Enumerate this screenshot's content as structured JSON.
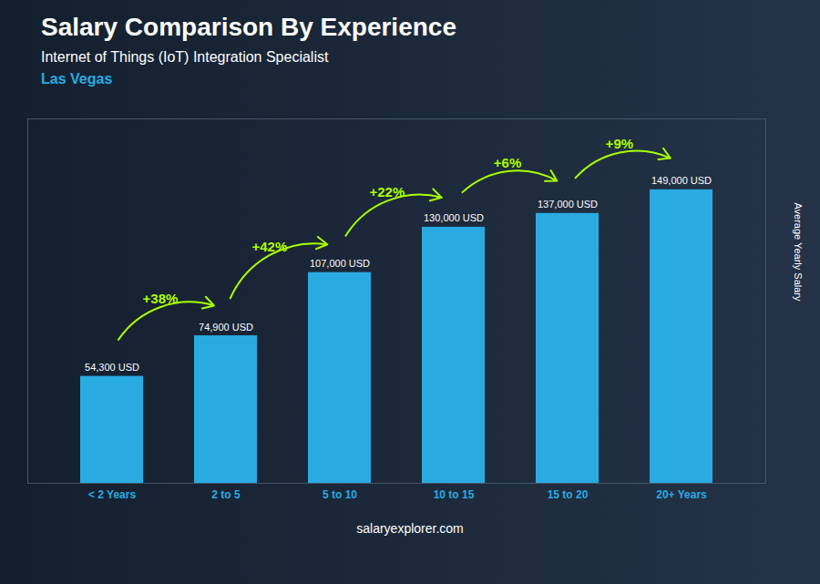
{
  "chart_data": {
    "type": "bar",
    "title": "Salary Comparison By Experience",
    "subtitle": "Internet of Things (IoT) Integration Specialist",
    "categories": [
      "< 2 Years",
      "2 to 5",
      "5 to 10",
      "10 to 15",
      "15 to 20",
      "20+ Years"
    ],
    "values": [
      54300,
      74900,
      107000,
      130000,
      137000,
      149000
    ],
    "value_labels": [
      "54,300 USD",
      "74,900 USD",
      "107,000 USD",
      "130,000 USD",
      "137,000 USD",
      "149,000 USD"
    ],
    "data_labels": true,
    "color": "#29ABE2",
    "ylabel": "Average Yearly Salary",
    "ylim": [
      0,
      185000
    ],
    "yticks": [],
    "tick_labels": "x",
    "grid": false,
    "annotations": [
      {
        "text": "Las Vegas",
        "color": "#29ABE2"
      },
      {
        "text": "+38%",
        "from": "< 2 Years",
        "to": "2 to 5",
        "color": "#AAFF00"
      },
      {
        "text": "+42%",
        "from": "2 to 5",
        "to": "5 to 10",
        "color": "#AAFF00"
      },
      {
        "text": "+22%",
        "from": "5 to 10",
        "to": "10 to 15",
        "color": "#AAFF00"
      },
      {
        "text": "+6%",
        "from": "10 to 15",
        "to": "15 to 20",
        "color": "#AAFF00"
      },
      {
        "text": "+9%",
        "from": "15 to 20",
        "to": "20+ Years",
        "color": "#AAFF00"
      }
    ],
    "caption": "salaryexplorer.com"
  }
}
